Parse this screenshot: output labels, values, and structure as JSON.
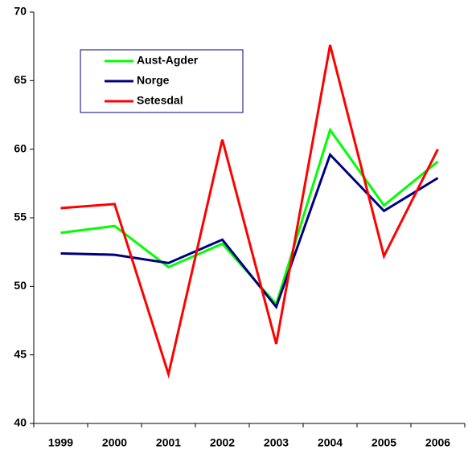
{
  "chart_data": {
    "type": "line",
    "categories": [
      "1999",
      "2000",
      "2001",
      "2002",
      "2003",
      "2004",
      "2005",
      "2006"
    ],
    "series": [
      {
        "name": "Aust-Agder",
        "color": "#00ff00",
        "values": [
          53.9,
          54.4,
          51.4,
          53.1,
          48.7,
          61.4,
          55.9,
          59.1
        ]
      },
      {
        "name": "Norge",
        "color": "#000080",
        "values": [
          52.4,
          52.3,
          51.7,
          53.4,
          48.5,
          59.6,
          55.5,
          57.9
        ]
      },
      {
        "name": "Setesdal",
        "color": "#ff0000",
        "values": [
          55.7,
          56.0,
          43.6,
          60.7,
          45.8,
          67.6,
          52.2,
          60.0
        ]
      }
    ],
    "ylim": [
      40,
      70
    ],
    "yticks": [
      40,
      45,
      50,
      55,
      60,
      65,
      70
    ],
    "grid": false,
    "legend": "upper-left"
  }
}
